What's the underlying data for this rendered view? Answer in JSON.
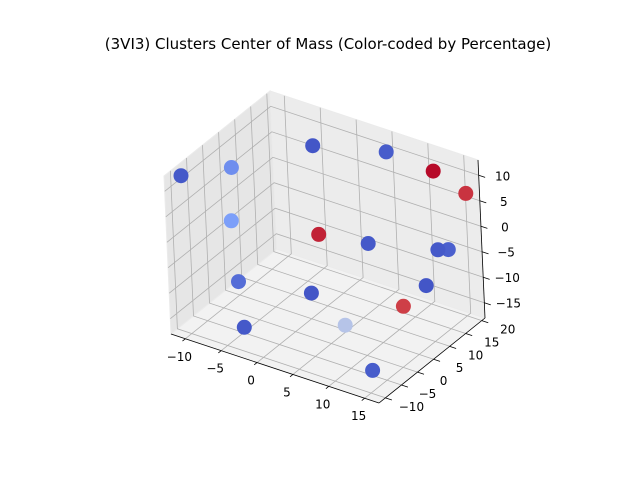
{
  "chart_data": {
    "type": "scatter3d",
    "title": "(3VI3) Clusters Center of Mass (Color-coded by Percentage)",
    "xlabel": "",
    "ylabel": "",
    "zlabel": "",
    "x_ticks": [
      "−10",
      "−5",
      "0",
      "5",
      "10",
      "15"
    ],
    "y_ticks": [
      "−10",
      "−5",
      "0",
      "5",
      "10",
      "15",
      "20"
    ],
    "z_ticks": [
      "−15",
      "−10",
      "−5",
      "0",
      "5",
      "10"
    ],
    "xlim": [
      -12,
      17
    ],
    "ylim": [
      -12,
      21
    ],
    "zlim": [
      -18,
      13
    ],
    "grid": true,
    "colormap": "coolwarm",
    "points": [
      {
        "x": 5,
        "y": 19,
        "z": 10,
        "pct": 0.05
      },
      {
        "x": 12,
        "y": 18,
        "z": 10,
        "pct": 0.99
      },
      {
        "x": 16,
        "y": 19,
        "z": 7,
        "pct": 0.92
      },
      {
        "x": -3,
        "y": 14,
        "z": 10,
        "pct": 0.03
      },
      {
        "x": -9,
        "y": 2,
        "z": 9,
        "pct": 0.2
      },
      {
        "x": -11,
        "y": -9,
        "z": 12,
        "pct": 0.04
      },
      {
        "x": -7,
        "y": -3,
        "z": 2,
        "pct": 0.25
      },
      {
        "x": 2,
        "y": 4,
        "z": 0,
        "pct": 0.95
      },
      {
        "x": 8,
        "y": 6,
        "z": 0,
        "pct": 0.04
      },
      {
        "x": 15,
        "y": 12,
        "z": -1,
        "pct": 0.04
      },
      {
        "x": 16,
        "y": 13,
        "z": -1,
        "pct": 0.06
      },
      {
        "x": 15,
        "y": 8,
        "z": -6,
        "pct": 0.03
      },
      {
        "x": 14,
        "y": 3,
        "z": -8,
        "pct": 0.9
      },
      {
        "x": 2,
        "y": 1,
        "z": -10,
        "pct": 0.03
      },
      {
        "x": -4,
        "y": -8,
        "z": -6,
        "pct": 0.1
      },
      {
        "x": -3,
        "y": -9,
        "z": -14,
        "pct": 0.04
      },
      {
        "x": 8,
        "y": -2,
        "z": -12,
        "pct": 0.4
      },
      {
        "x": 13,
        "y": -5,
        "z": -17,
        "pct": 0.05
      }
    ]
  }
}
